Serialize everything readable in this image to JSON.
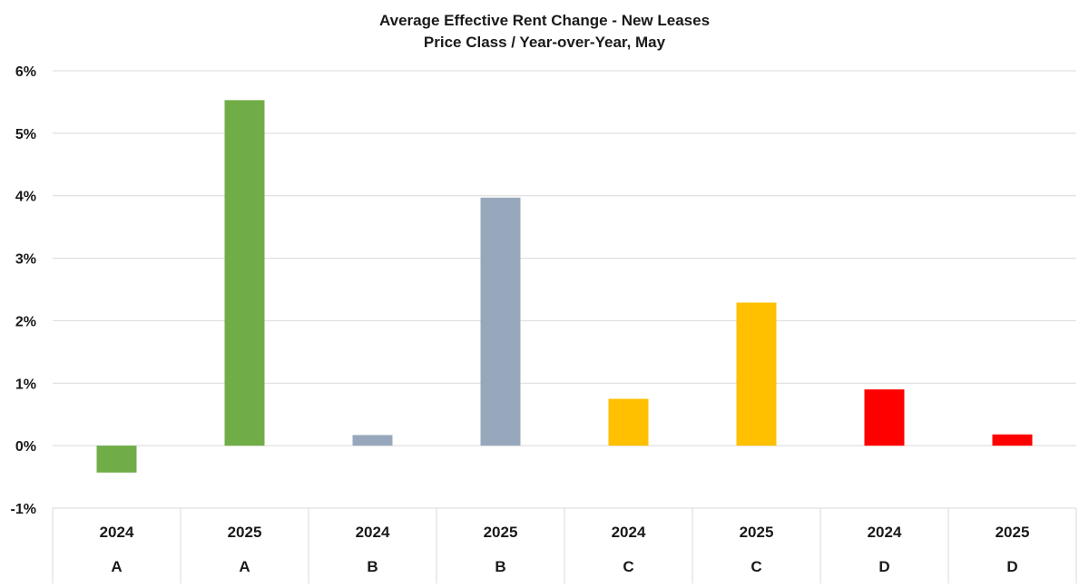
{
  "chart_data": {
    "type": "bar",
    "title": "Average Effective Rent Change - New Leases",
    "subtitle": "Price Class / Year-over-Year, May",
    "xlabel": "",
    "ylabel": "",
    "ylim": [
      -1,
      6
    ],
    "y_ticks": [
      -1,
      0,
      1,
      2,
      3,
      4,
      5,
      6
    ],
    "y_tick_labels": [
      "-1%",
      "0%",
      "1%",
      "2%",
      "3%",
      "4%",
      "5%",
      "6%"
    ],
    "grid": true,
    "legend": "none",
    "categories": [
      {
        "year": "2024",
        "group": "A"
      },
      {
        "year": "2025",
        "group": "A"
      },
      {
        "year": "2024",
        "group": "B"
      },
      {
        "year": "2025",
        "group": "B"
      },
      {
        "year": "2024",
        "group": "C"
      },
      {
        "year": "2025",
        "group": "C"
      },
      {
        "year": "2024",
        "group": "D"
      },
      {
        "year": "2025",
        "group": "D"
      }
    ],
    "values": [
      -0.43,
      5.53,
      0.17,
      3.97,
      0.75,
      2.29,
      0.9,
      0.18
    ],
    "bar_colors": [
      "#70ad47",
      "#70ad47",
      "#98a8bc",
      "#98a8bc",
      "#ffc000",
      "#ffc000",
      "#ff0000",
      "#ff0000"
    ],
    "colors": {
      "grid": "#d9d9d9",
      "axis": "#bfbfbf",
      "text": "#1a1a1a"
    }
  }
}
